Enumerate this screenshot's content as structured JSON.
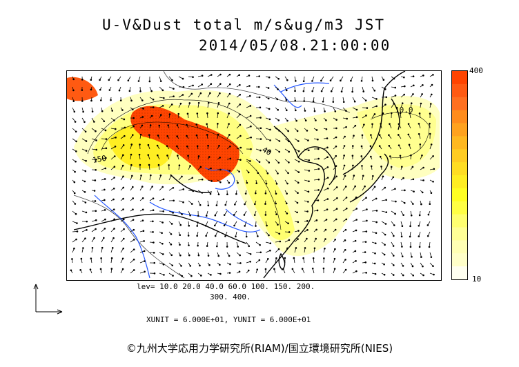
{
  "title": {
    "line1": "U-V&Dust total m/s&ug/m3 JST",
    "line2": "2014/05/08.21:00:00"
  },
  "colorbar": {
    "max_label": "400",
    "min_label": "10",
    "colors": [
      "#ff4400",
      "#ff5a12",
      "#ff7020",
      "#ff8c1c",
      "#ffa21e",
      "#ffb820",
      "#ffcc22",
      "#ffdd22",
      "#ffee22",
      "#ffff22",
      "#ffff44",
      "#ffff70",
      "#ffff96",
      "#ffffb4",
      "#ffffc8",
      "#fffff0"
    ]
  },
  "levels": {
    "line1": "lev= 10.0 20.0 40.0 60.0 100. 150. 200.",
    "line2": "300. 400."
  },
  "units_text": "XUNIT = 6.000E+01, YUNIT = 6.000E+01",
  "contour_labels": [
    "150",
    "40",
    "10.0"
  ],
  "copyright": "©九州大学応用力学研究所(RIAM)/国立環境研究所(NIES)",
  "colors": {
    "dust_high": "#ff4400",
    "dust_low": "#ffffb4",
    "rivers": "#2255ff",
    "coast": "#000000"
  }
}
